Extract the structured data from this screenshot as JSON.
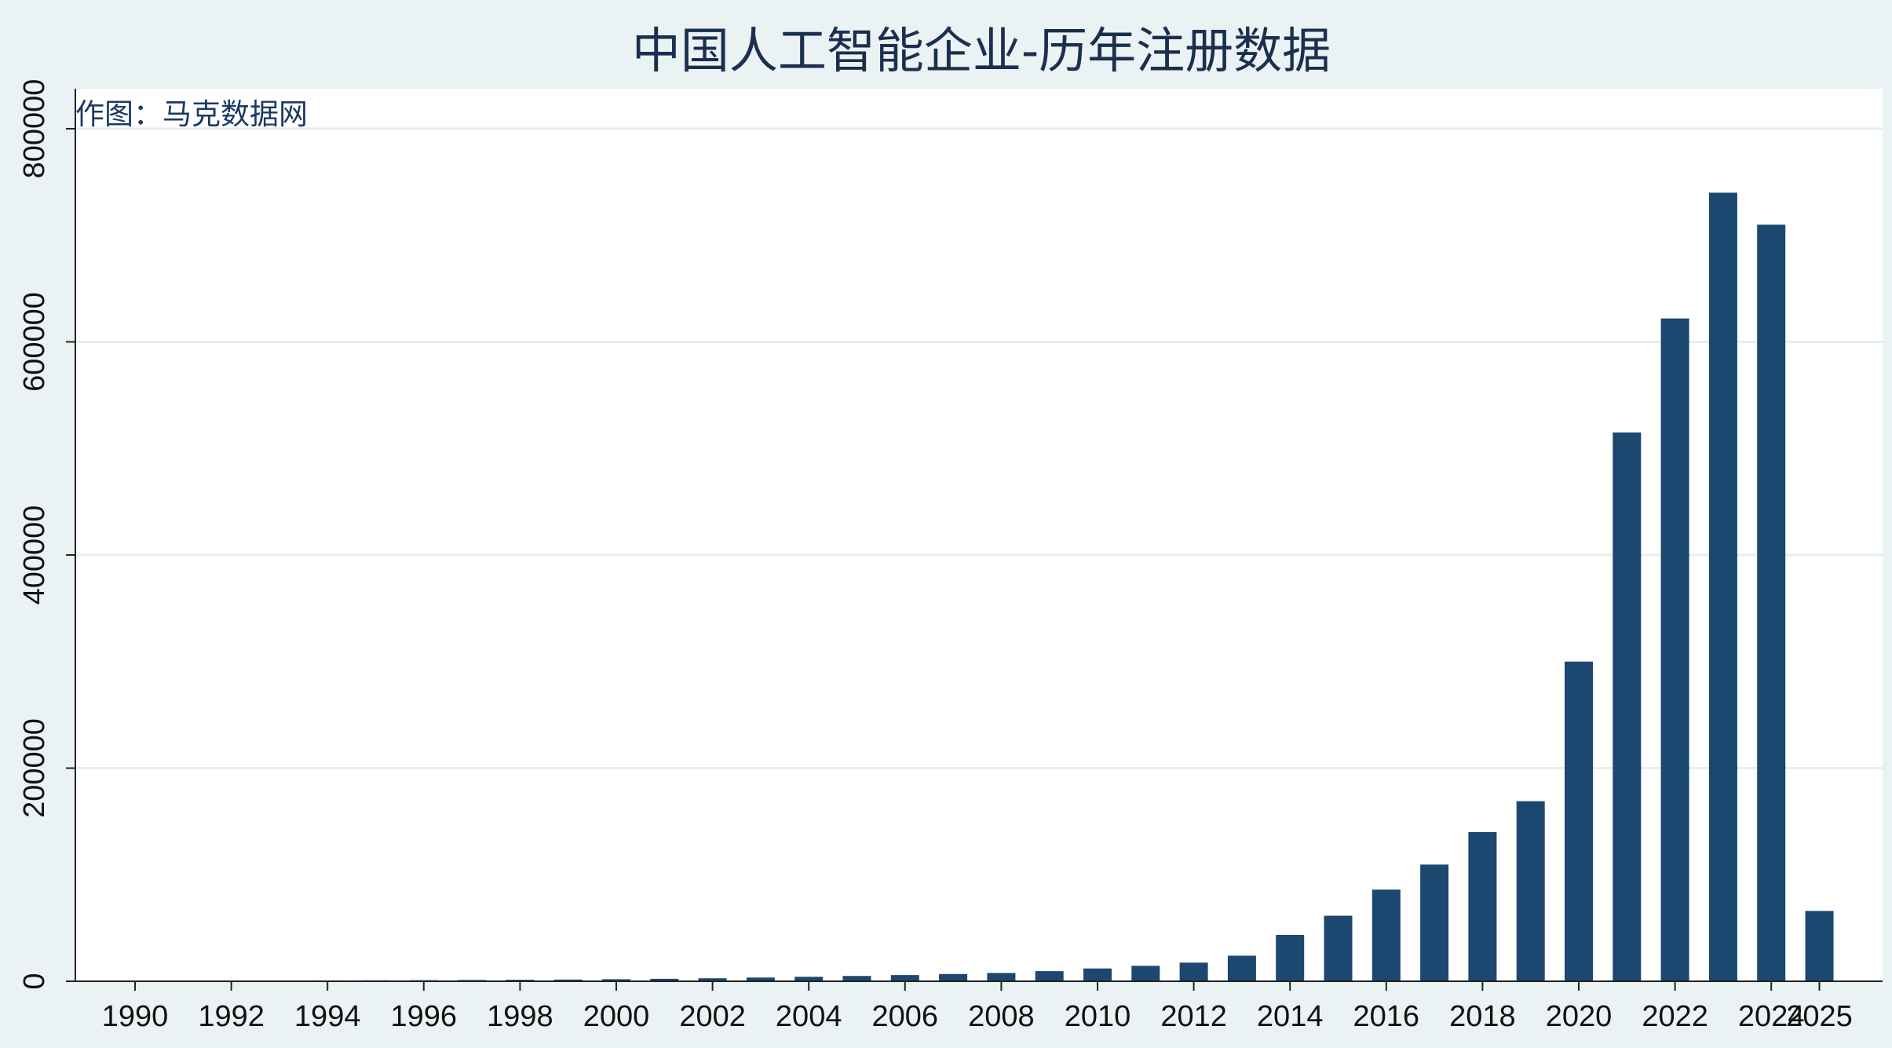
{
  "chart_data": {
    "type": "bar",
    "title": "中国人工智能企业-历年注册数据",
    "credit": "作图：马克数据网",
    "xlabel": "",
    "ylabel": "",
    "ylim": [
      0,
      800000
    ],
    "grid": true,
    "legend": "none",
    "bar_color": "#1c4770",
    "categories": [
      "1990",
      "1991",
      "1992",
      "1993",
      "1994",
      "1995",
      "1996",
      "1997",
      "1998",
      "1999",
      "2000",
      "2001",
      "2002",
      "2003",
      "2004",
      "2005",
      "2006",
      "2007",
      "2008",
      "2009",
      "2010",
      "2011",
      "2012",
      "2013",
      "2014",
      "2015",
      "2016",
      "2017",
      "2018",
      "2019",
      "2020",
      "2021",
      "2022",
      "2023",
      "2024",
      "2025"
    ],
    "values": [
      400,
      500,
      600,
      700,
      800,
      900,
      1000,
      1200,
      1400,
      1600,
      1900,
      2300,
      2800,
      3500,
      4200,
      5000,
      5800,
      6800,
      7800,
      9500,
      12000,
      14500,
      17500,
      24000,
      43500,
      61500,
      86000,
      109500,
      140000,
      169000,
      300000,
      515000,
      622000,
      740000,
      710000,
      66000
    ],
    "x_tick_labels": [
      "1990",
      "1992",
      "1994",
      "1996",
      "1998",
      "2000",
      "2002",
      "2004",
      "2006",
      "2008",
      "2010",
      "2012",
      "2014",
      "2016",
      "2018",
      "2020",
      "2022",
      "2024",
      "2025"
    ],
    "y_tick_labels": [
      "0",
      "200000",
      "400000",
      "600000",
      "800000"
    ]
  }
}
